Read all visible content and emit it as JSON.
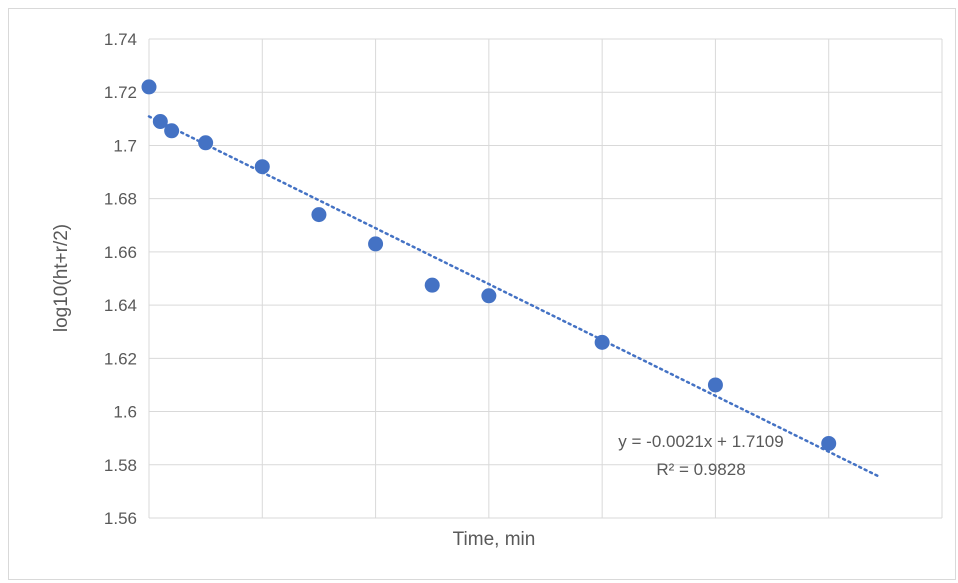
{
  "chart_data": {
    "type": "scatter",
    "title": "",
    "xlabel": "Time, min",
    "ylabel": "log10(ht+r/2)",
    "xlim": [
      0,
      70
    ],
    "ylim": [
      1.56,
      1.74
    ],
    "x_gridlines": [
      0,
      10,
      20,
      30,
      40,
      50,
      60,
      70
    ],
    "y_ticks": [
      "1.56",
      "1.58",
      "1.6",
      "1.62",
      "1.64",
      "1.66",
      "1.68",
      "1.7",
      "1.72",
      "1.74"
    ],
    "y_tick_values": [
      1.56,
      1.58,
      1.6,
      1.62,
      1.64,
      1.66,
      1.68,
      1.7,
      1.72,
      1.74
    ],
    "grid": true,
    "legend": "none",
    "series": [
      {
        "color": "#4472c4",
        "points": [
          {
            "x": 0,
            "y": 1.722
          },
          {
            "x": 1,
            "y": 1.709
          },
          {
            "x": 2,
            "y": 1.7055
          },
          {
            "x": 5,
            "y": 1.701
          },
          {
            "x": 10,
            "y": 1.692
          },
          {
            "x": 15,
            "y": 1.674
          },
          {
            "x": 20,
            "y": 1.663
          },
          {
            "x": 25,
            "y": 1.6475
          },
          {
            "x": 30,
            "y": 1.6435
          },
          {
            "x": 40,
            "y": 1.626
          },
          {
            "x": 50,
            "y": 1.61
          },
          {
            "x": 60,
            "y": 1.588
          }
        ]
      }
    ],
    "trendline": {
      "type": "linear",
      "slope": -0.0021,
      "intercept": 1.7109,
      "x_range": [
        0,
        60
      ],
      "style": "dotted",
      "color": "#4472c4",
      "equation_label": "y = -0.0021x + 1.7109",
      "r2_label": "R² = 0.9828"
    }
  }
}
